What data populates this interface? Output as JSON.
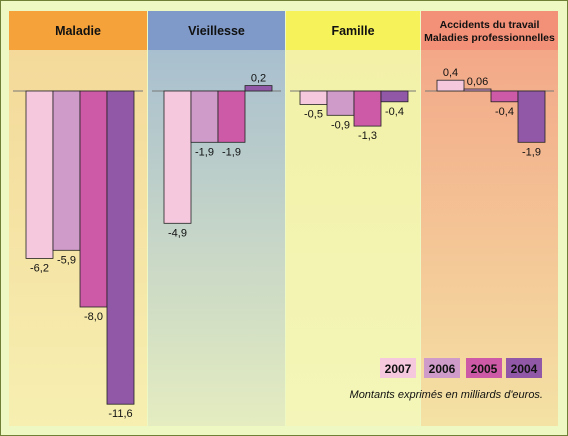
{
  "chart_data": {
    "type": "bar",
    "categories": [
      "Maladie",
      "Vieillesse",
      "Famille",
      "Accidents du travail\nMaladies professionnelles"
    ],
    "series": [
      {
        "name": "2007",
        "values": [
          -6.2,
          -4.9,
          -0.5,
          0.4
        ],
        "labels": [
          "-6,2",
          "-4,9",
          "-0,5",
          "0,4"
        ]
      },
      {
        "name": "2006",
        "values": [
          -5.9,
          -1.9,
          -0.9,
          0.06
        ],
        "labels": [
          "-5,9",
          "-1,9",
          "-0,9",
          "0,06"
        ]
      },
      {
        "name": "2005",
        "values": [
          -8.0,
          -1.9,
          -1.3,
          -0.4
        ],
        "labels": [
          "-8,0",
          "-1,9",
          "-1,3",
          "-0,4"
        ]
      },
      {
        "name": "2004",
        "values": [
          -11.6,
          0.2,
          -0.4,
          -1.9
        ],
        "labels": [
          "-11,6",
          "0,2",
          "-0,4",
          "-1,9"
        ]
      }
    ],
    "series_colors": [
      "#f5c8dd",
      "#cf9bc9",
      "#cc5aa6",
      "#9158a8"
    ],
    "panel_colors": [
      {
        "header": "#f5a23a",
        "top": "#f4d99a",
        "bottom": "#f6efb0"
      },
      {
        "header": "#7f9ac8",
        "top": "#a8bfcf",
        "bottom": "#e4ecc0"
      },
      {
        "header": "#f6f35a",
        "top": "#f3f1a8",
        "bottom": "#f3f6b8"
      },
      {
        "header": "#f29078",
        "top": "#f3a888",
        "bottom": "#f4e2a4"
      }
    ],
    "legend_position": "bottom-right",
    "grid": false
  },
  "note": "Montants exprimés en milliards d'euros."
}
